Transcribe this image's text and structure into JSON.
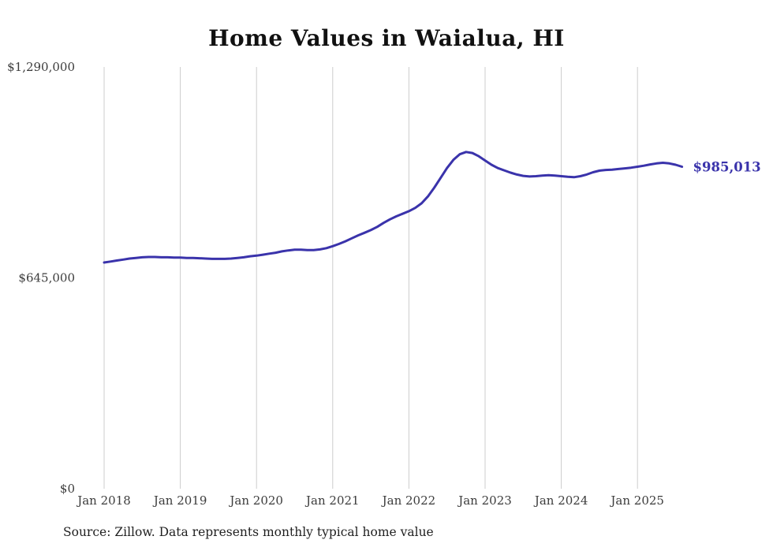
{
  "chart_data": {
    "type": "line",
    "title": "Home Values in Waialua, HI",
    "source_note": "Source: Zillow. Data represents monthly typical home value",
    "line_color": "#3a33ab",
    "gridline_color": "#cccccc",
    "axis_text_color": "#3c3c3c",
    "legend_position": "none",
    "grid": "vertical-only",
    "ylim": [
      0,
      1290000
    ],
    "yticks": [
      {
        "value": 0,
        "label": "$0"
      },
      {
        "value": 645000,
        "label": "$645,000"
      },
      {
        "value": 1290000,
        "label": "$1,290,000"
      }
    ],
    "xticks": [
      "Jan 2018",
      "Jan 2019",
      "Jan 2020",
      "Jan 2021",
      "Jan 2022",
      "Jan 2023",
      "Jan 2024",
      "Jan 2025"
    ],
    "frequency": "monthly",
    "latest_value": 985013,
    "latest_label": "$985,013",
    "months": [
      "2018-01",
      "2018-02",
      "2018-03",
      "2018-04",
      "2018-05",
      "2018-06",
      "2018-07",
      "2018-08",
      "2018-09",
      "2018-10",
      "2018-11",
      "2018-12",
      "2019-01",
      "2019-02",
      "2019-03",
      "2019-04",
      "2019-05",
      "2019-06",
      "2019-07",
      "2019-08",
      "2019-09",
      "2019-10",
      "2019-11",
      "2019-12",
      "2020-01",
      "2020-02",
      "2020-03",
      "2020-04",
      "2020-05",
      "2020-06",
      "2020-07",
      "2020-08",
      "2020-09",
      "2020-10",
      "2020-11",
      "2020-12",
      "2021-01",
      "2021-02",
      "2021-03",
      "2021-04",
      "2021-05",
      "2021-06",
      "2021-07",
      "2021-08",
      "2021-09",
      "2021-10",
      "2021-11",
      "2021-12",
      "2022-01",
      "2022-02",
      "2022-03",
      "2022-04",
      "2022-05",
      "2022-06",
      "2022-07",
      "2022-08",
      "2022-09",
      "2022-10",
      "2022-11",
      "2022-12",
      "2023-01",
      "2023-02",
      "2023-03",
      "2023-04",
      "2023-05",
      "2023-06",
      "2023-07",
      "2023-08",
      "2023-09",
      "2023-10",
      "2023-11",
      "2023-12",
      "2024-01",
      "2024-02",
      "2024-03",
      "2024-04",
      "2024-05",
      "2024-06",
      "2024-07",
      "2024-08",
      "2024-09",
      "2024-10",
      "2024-11",
      "2024-12",
      "2025-01",
      "2025-02",
      "2025-03",
      "2025-04",
      "2025-05",
      "2025-06",
      "2025-07",
      "2025-08"
    ],
    "values": [
      692000,
      695000,
      698000,
      701000,
      704000,
      706000,
      708000,
      709000,
      709000,
      708000,
      708000,
      707000,
      707000,
      706000,
      706000,
      705000,
      704000,
      703000,
      703000,
      703000,
      704000,
      706000,
      708000,
      711000,
      713000,
      716000,
      719000,
      722000,
      726000,
      729000,
      731000,
      731000,
      730000,
      730000,
      732000,
      736000,
      742000,
      749000,
      757000,
      766000,
      775000,
      783000,
      791000,
      801000,
      813000,
      824000,
      833000,
      841000,
      849000,
      859000,
      873000,
      894000,
      921000,
      951000,
      981000,
      1006000,
      1023000,
      1030000,
      1027000,
      1017000,
      1004000,
      991000,
      981000,
      974000,
      967000,
      961000,
      957000,
      955000,
      956000,
      958000,
      959000,
      958000,
      956000,
      954000,
      953000,
      956000,
      961000,
      968000,
      973000,
      975000,
      976000,
      978000,
      980000,
      982000,
      985000,
      988000,
      992000,
      995000,
      997000,
      995000,
      991000,
      985013
    ]
  }
}
